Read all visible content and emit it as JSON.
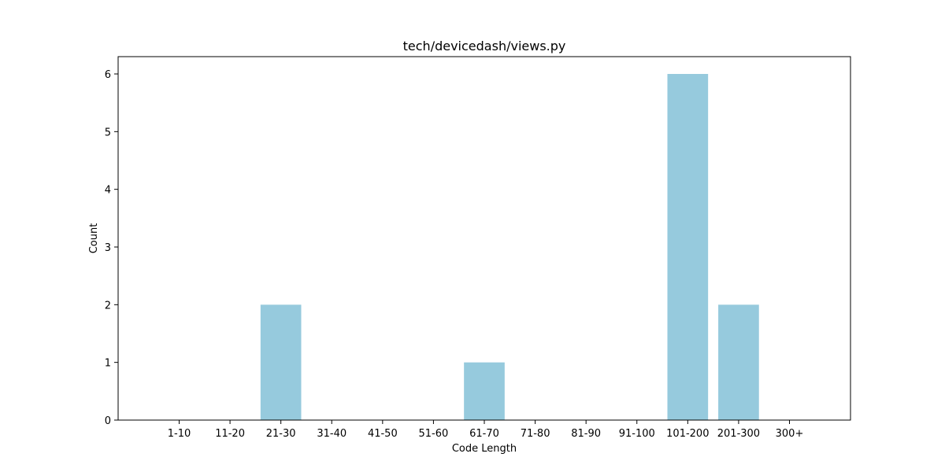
{
  "chart_data": {
    "type": "bar",
    "title": "tech/devicedash/views.py",
    "xlabel": "Code Length",
    "ylabel": "Count",
    "categories": [
      "1-10",
      "11-20",
      "21-30",
      "31-40",
      "41-50",
      "51-60",
      "61-70",
      "71-80",
      "81-90",
      "91-100",
      "101-200",
      "201-300",
      "300+"
    ],
    "values": [
      0,
      0,
      2,
      0,
      0,
      0,
      1,
      0,
      0,
      0,
      6,
      2,
      0
    ],
    "ylim": [
      0,
      6.3
    ],
    "yticks": [
      0,
      1,
      2,
      3,
      4,
      5,
      6
    ],
    "bar_color": "#96cadd",
    "grid": false,
    "legend": "none"
  }
}
